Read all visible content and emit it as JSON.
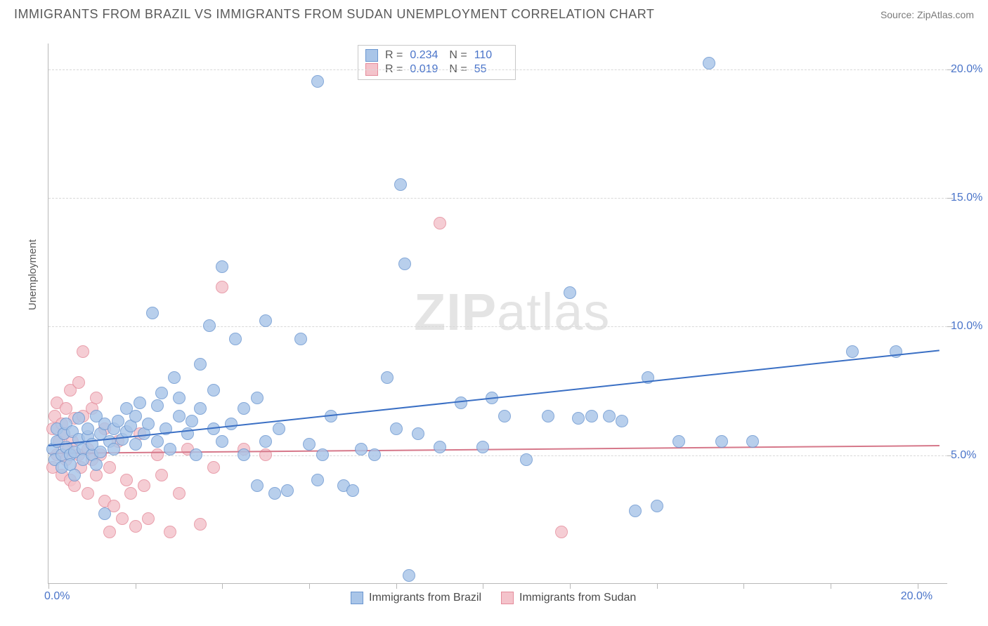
{
  "header": {
    "title": "IMMIGRANTS FROM BRAZIL VS IMMIGRANTS FROM SUDAN UNEMPLOYMENT CORRELATION CHART",
    "source": "Source: ZipAtlas.com"
  },
  "axes": {
    "y_label": "Unemployment",
    "x_min": 0,
    "x_max": 20.7,
    "y_min": 0,
    "y_max": 21,
    "x_ticks": [
      0,
      2,
      4,
      6,
      8,
      10,
      12,
      14,
      16,
      18,
      20
    ],
    "x_tick_labels": {
      "0": "0.0%",
      "20": "20.0%"
    },
    "y_ticks": [
      5,
      10,
      15,
      20
    ],
    "y_tick_labels": {
      "5": "5.0%",
      "10": "10.0%",
      "15": "15.0%",
      "20": "20.0%"
    },
    "grid_color": "#d8d8d8",
    "axis_color": "#b8b8b8"
  },
  "watermark": {
    "text_bold": "ZIP",
    "text_light": "atlas"
  },
  "series": {
    "brazil": {
      "label": "Immigrants from Brazil",
      "fill": "#a9c5e8",
      "stroke": "#6a96d0",
      "trend_color": "#3a6fc4",
      "R": "0.234",
      "N": "110",
      "trend": {
        "x1": 0,
        "y1": 5.4,
        "x2": 20.5,
        "y2": 9.1
      },
      "marker_r": 9,
      "points": [
        [
          0.1,
          5.2
        ],
        [
          0.15,
          4.8
        ],
        [
          0.2,
          5.5
        ],
        [
          0.2,
          6.0
        ],
        [
          0.3,
          5.0
        ],
        [
          0.3,
          4.5
        ],
        [
          0.35,
          5.8
        ],
        [
          0.4,
          5.3
        ],
        [
          0.4,
          6.2
        ],
        [
          0.5,
          5.0
        ],
        [
          0.5,
          4.6
        ],
        [
          0.55,
          5.9
        ],
        [
          0.6,
          5.1
        ],
        [
          0.6,
          4.2
        ],
        [
          0.7,
          5.6
        ],
        [
          0.7,
          6.4
        ],
        [
          0.8,
          5.2
        ],
        [
          0.8,
          4.8
        ],
        [
          0.9,
          5.7
        ],
        [
          0.9,
          6.0
        ],
        [
          1.0,
          5.0
        ],
        [
          1.0,
          5.4
        ],
        [
          1.1,
          6.5
        ],
        [
          1.1,
          4.6
        ],
        [
          1.2,
          5.8
        ],
        [
          1.2,
          5.1
        ],
        [
          1.3,
          6.2
        ],
        [
          1.3,
          2.7
        ],
        [
          1.4,
          5.5
        ],
        [
          1.5,
          6.0
        ],
        [
          1.5,
          5.2
        ],
        [
          1.6,
          6.3
        ],
        [
          1.7,
          5.6
        ],
        [
          1.8,
          6.8
        ],
        [
          1.8,
          5.9
        ],
        [
          1.9,
          6.1
        ],
        [
          2.0,
          5.4
        ],
        [
          2.0,
          6.5
        ],
        [
          2.1,
          7.0
        ],
        [
          2.2,
          5.8
        ],
        [
          2.3,
          6.2
        ],
        [
          2.4,
          10.5
        ],
        [
          2.5,
          5.5
        ],
        [
          2.5,
          6.9
        ],
        [
          2.6,
          7.4
        ],
        [
          2.7,
          6.0
        ],
        [
          2.8,
          5.2
        ],
        [
          2.9,
          8.0
        ],
        [
          3.0,
          6.5
        ],
        [
          3.0,
          7.2
        ],
        [
          3.2,
          5.8
        ],
        [
          3.3,
          6.3
        ],
        [
          3.4,
          5.0
        ],
        [
          3.5,
          8.5
        ],
        [
          3.5,
          6.8
        ],
        [
          3.7,
          10.0
        ],
        [
          3.8,
          6.0
        ],
        [
          3.8,
          7.5
        ],
        [
          4.0,
          5.5
        ],
        [
          4.0,
          12.3
        ],
        [
          4.2,
          6.2
        ],
        [
          4.3,
          9.5
        ],
        [
          4.5,
          6.8
        ],
        [
          4.5,
          5.0
        ],
        [
          4.8,
          7.2
        ],
        [
          4.8,
          3.8
        ],
        [
          5.0,
          10.2
        ],
        [
          5.0,
          5.5
        ],
        [
          5.2,
          3.5
        ],
        [
          5.3,
          6.0
        ],
        [
          5.5,
          3.6
        ],
        [
          5.8,
          9.5
        ],
        [
          6.0,
          5.4
        ],
        [
          6.2,
          19.5
        ],
        [
          6.2,
          4.0
        ],
        [
          6.3,
          5.0
        ],
        [
          6.5,
          6.5
        ],
        [
          6.8,
          3.8
        ],
        [
          7.0,
          3.6
        ],
        [
          7.2,
          5.2
        ],
        [
          7.5,
          5.0
        ],
        [
          7.8,
          8.0
        ],
        [
          8.0,
          6.0
        ],
        [
          8.1,
          15.5
        ],
        [
          8.2,
          12.4
        ],
        [
          8.3,
          0.3
        ],
        [
          8.5,
          5.8
        ],
        [
          9.0,
          5.3
        ],
        [
          9.5,
          7.0
        ],
        [
          10.0,
          5.3
        ],
        [
          10.2,
          7.2
        ],
        [
          10.5,
          6.5
        ],
        [
          11.0,
          4.8
        ],
        [
          11.5,
          6.5
        ],
        [
          12.0,
          11.3
        ],
        [
          12.2,
          6.4
        ],
        [
          12.5,
          6.5
        ],
        [
          12.9,
          6.5
        ],
        [
          13.2,
          6.3
        ],
        [
          13.5,
          2.8
        ],
        [
          13.8,
          8.0
        ],
        [
          14.0,
          3.0
        ],
        [
          14.5,
          5.5
        ],
        [
          15.2,
          20.2
        ],
        [
          15.5,
          5.5
        ],
        [
          16.2,
          5.5
        ],
        [
          18.5,
          9.0
        ],
        [
          19.5,
          9.0
        ]
      ]
    },
    "sudan": {
      "label": "Immigrants from Sudan",
      "fill": "#f4c3cb",
      "stroke": "#e48b9a",
      "trend_color": "#d6788a",
      "R": "0.019",
      "N": "55",
      "trend": {
        "x1": 0,
        "y1": 5.1,
        "x2": 20.5,
        "y2": 5.4
      },
      "marker_r": 9,
      "points": [
        [
          0.1,
          6.0
        ],
        [
          0.1,
          4.5
        ],
        [
          0.15,
          6.5
        ],
        [
          0.2,
          5.0
        ],
        [
          0.2,
          7.0
        ],
        [
          0.25,
          5.5
        ],
        [
          0.3,
          4.2
        ],
        [
          0.3,
          6.2
        ],
        [
          0.35,
          5.8
        ],
        [
          0.4,
          4.8
        ],
        [
          0.4,
          6.8
        ],
        [
          0.45,
          5.2
        ],
        [
          0.5,
          4.0
        ],
        [
          0.5,
          7.5
        ],
        [
          0.55,
          5.5
        ],
        [
          0.6,
          6.4
        ],
        [
          0.6,
          3.8
        ],
        [
          0.7,
          5.0
        ],
        [
          0.7,
          7.8
        ],
        [
          0.75,
          4.5
        ],
        [
          0.8,
          6.5
        ],
        [
          0.8,
          9.0
        ],
        [
          0.9,
          5.2
        ],
        [
          0.9,
          3.5
        ],
        [
          1.0,
          4.8
        ],
        [
          1.0,
          6.8
        ],
        [
          1.1,
          4.2
        ],
        [
          1.1,
          7.2
        ],
        [
          1.2,
          5.0
        ],
        [
          1.3,
          3.2
        ],
        [
          1.3,
          6.0
        ],
        [
          1.4,
          2.0
        ],
        [
          1.4,
          4.5
        ],
        [
          1.5,
          3.0
        ],
        [
          1.6,
          5.5
        ],
        [
          1.7,
          2.5
        ],
        [
          1.8,
          4.0
        ],
        [
          1.9,
          3.5
        ],
        [
          2.0,
          2.2
        ],
        [
          2.1,
          5.8
        ],
        [
          2.2,
          3.8
        ],
        [
          2.3,
          2.5
        ],
        [
          2.5,
          5.0
        ],
        [
          2.6,
          4.2
        ],
        [
          2.8,
          2.0
        ],
        [
          3.0,
          3.5
        ],
        [
          3.2,
          5.2
        ],
        [
          3.5,
          2.3
        ],
        [
          3.8,
          4.5
        ],
        [
          4.0,
          11.5
        ],
        [
          4.5,
          5.2
        ],
        [
          5.0,
          5.0
        ],
        [
          9.0,
          14.0
        ],
        [
          11.8,
          2.0
        ]
      ]
    }
  },
  "colors": {
    "title": "#5a5a5a",
    "axis_value": "#4a74c9",
    "background": "#ffffff"
  }
}
